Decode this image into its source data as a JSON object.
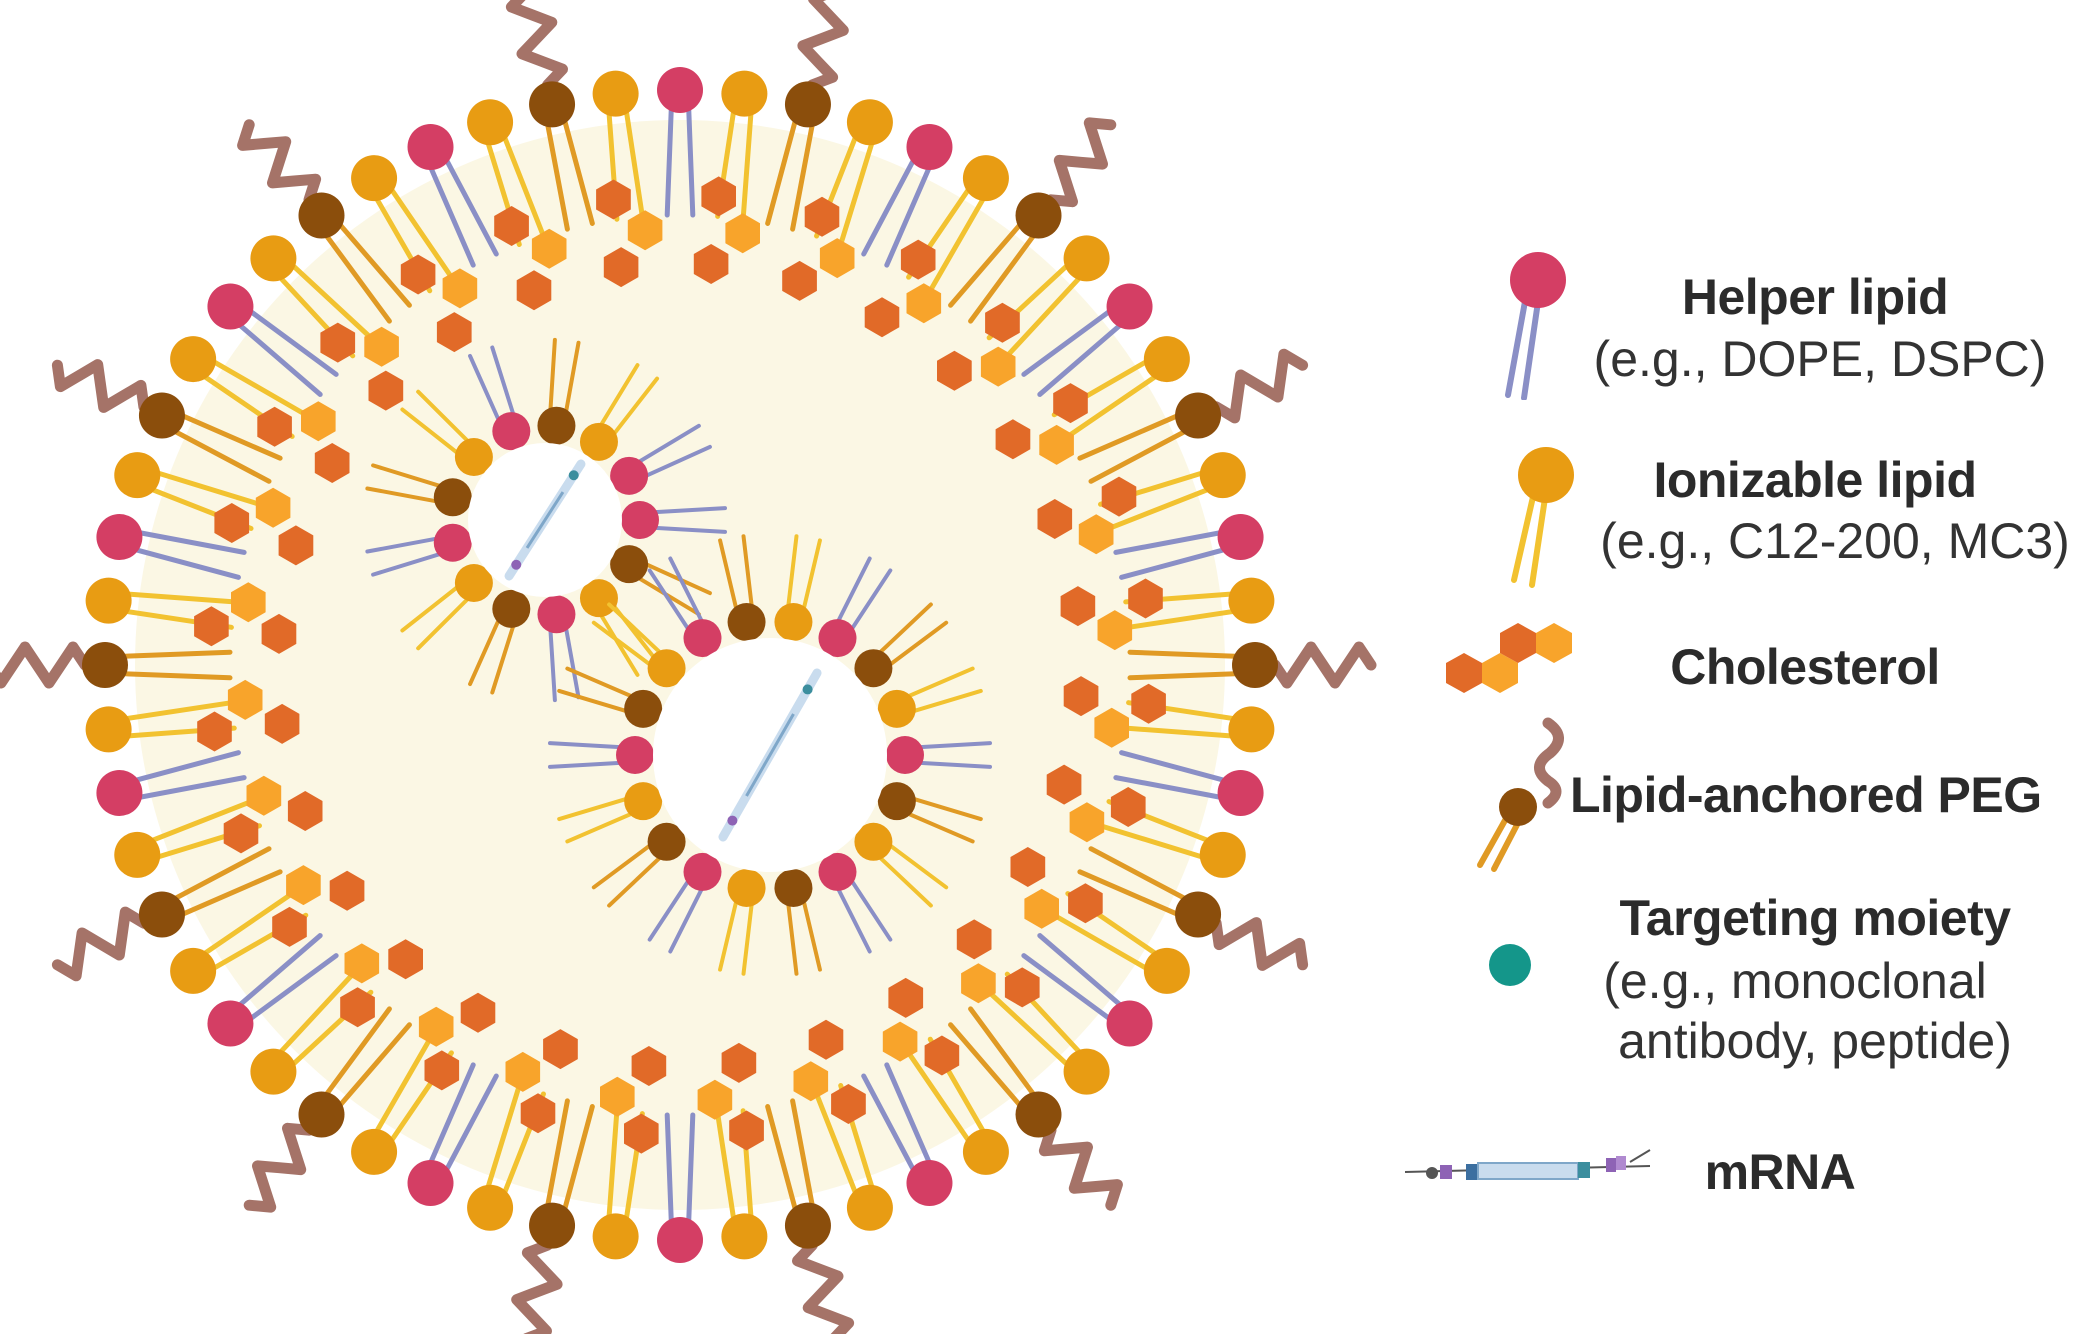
{
  "colors": {
    "core": "#FBF7E4",
    "helper_head": "#D43E64",
    "helper_tail": "#8A8FC6",
    "ionizable_head": "#E89C13",
    "ionizable_tail": "#F2C230",
    "cholesterol_dark": "#E16A28",
    "cholesterol_light": "#F8A42B",
    "peg_head": "#8B4E0C",
    "peg_tail": "#E09A24",
    "peg_chain": "#A57368",
    "targeting": "#14968A",
    "mrna_body": "#C9DCEE",
    "mrna_cap": "#8E63B5",
    "mrna_tail": "#3C8E9E"
  },
  "legend": {
    "helper": {
      "title": "Helper lipid",
      "subtitle": "(e.g., DOPE, DSPC)",
      "icon": "helper-lipid-icon"
    },
    "ionizable": {
      "title": "Ionizable lipid",
      "subtitle": "(e.g., C12-200, MC3)",
      "icon": "ionizable-lipid-icon"
    },
    "cholesterol": {
      "title": "Cholesterol",
      "icon": "cholesterol-icon"
    },
    "peg": {
      "title": "Lipid-anchored PEG",
      "icon": "peg-lipid-icon"
    },
    "targeting": {
      "title": "Targeting moiety",
      "subtitle_line1": "(e.g., monoclonal",
      "subtitle_line2": "antibody, peptide)",
      "icon": "targeting-moiety-icon"
    },
    "mrna": {
      "title": "mRNA",
      "icon": "mrna-icon"
    }
  }
}
